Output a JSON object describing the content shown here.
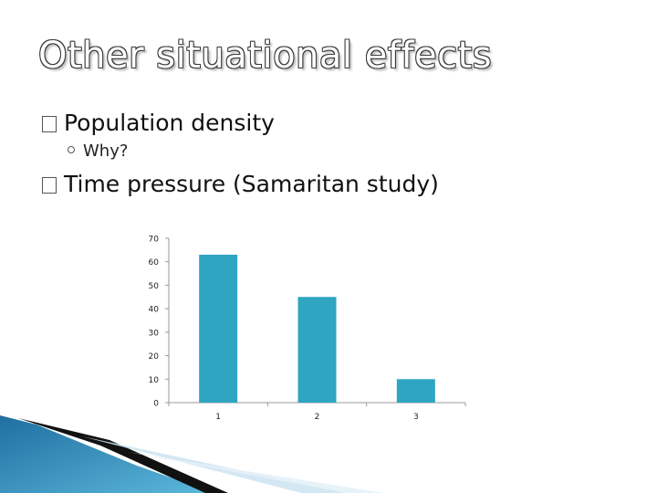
{
  "slide": {
    "title": "Other situational effects",
    "bullets": [
      {
        "text": "Population density",
        "sub": [
          "Why?"
        ]
      },
      {
        "text": "Time pressure (Samaritan study)",
        "sub": []
      }
    ]
  },
  "colors": {
    "bar": "#2ea5c1",
    "axis": "#9a9a9a"
  },
  "chart_data": {
    "type": "bar",
    "categories": [
      "1",
      "2",
      "3"
    ],
    "values": [
      63,
      45,
      10
    ],
    "ylim": [
      0,
      70
    ],
    "yticks": [
      0,
      10,
      20,
      30,
      40,
      50,
      60,
      70
    ],
    "title": "",
    "xlabel": "",
    "ylabel": "",
    "grid": false
  }
}
